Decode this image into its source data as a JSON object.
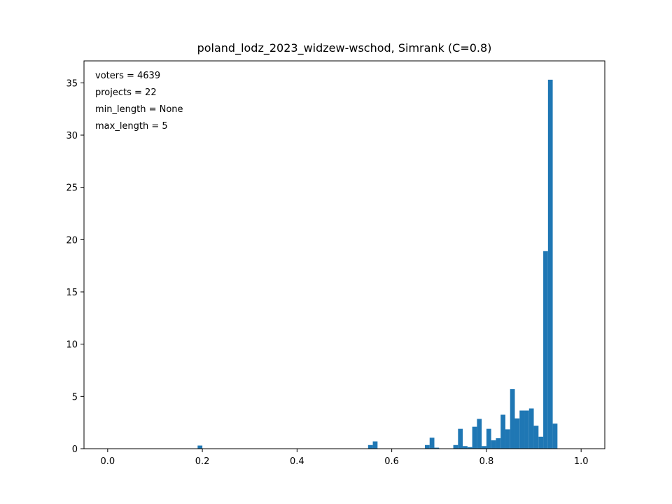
{
  "chart_data": {
    "type": "bar",
    "title": "poland_lodz_2023_widzew-wschod, Simrank (C=0.8)",
    "xlabel": "",
    "ylabel": "",
    "xlim": [
      -0.05,
      1.05
    ],
    "ylim": [
      0,
      37.1
    ],
    "x_ticks": [
      0.0,
      0.2,
      0.4,
      0.6,
      0.8,
      1.0
    ],
    "x_tick_labels": [
      "0.0",
      "0.2",
      "0.4",
      "0.6",
      "0.8",
      "1.0"
    ],
    "y_ticks": [
      0,
      5,
      10,
      15,
      20,
      25,
      30,
      35
    ],
    "y_tick_labels": [
      "0",
      "5",
      "10",
      "15",
      "20",
      "25",
      "30",
      "35"
    ],
    "bar_color": "#1f77b4",
    "bin_width": 0.01,
    "bins": [
      {
        "x": 0.19,
        "height": 0.3
      },
      {
        "x": 0.55,
        "height": 0.35
      },
      {
        "x": 0.56,
        "height": 0.7
      },
      {
        "x": 0.67,
        "height": 0.35
      },
      {
        "x": 0.68,
        "height": 1.05
      },
      {
        "x": 0.69,
        "height": 0.1
      },
      {
        "x": 0.73,
        "height": 0.35
      },
      {
        "x": 0.74,
        "height": 1.9
      },
      {
        "x": 0.75,
        "height": 0.25
      },
      {
        "x": 0.76,
        "height": 0.15
      },
      {
        "x": 0.77,
        "height": 2.1
      },
      {
        "x": 0.78,
        "height": 2.85
      },
      {
        "x": 0.79,
        "height": 0.25
      },
      {
        "x": 0.8,
        "height": 1.9
      },
      {
        "x": 0.81,
        "height": 0.8
      },
      {
        "x": 0.82,
        "height": 1.0
      },
      {
        "x": 0.83,
        "height": 3.25
      },
      {
        "x": 0.84,
        "height": 1.85
      },
      {
        "x": 0.85,
        "height": 5.7
      },
      {
        "x": 0.86,
        "height": 2.9
      },
      {
        "x": 0.87,
        "height": 3.65
      },
      {
        "x": 0.88,
        "height": 3.65
      },
      {
        "x": 0.89,
        "height": 3.85
      },
      {
        "x": 0.9,
        "height": 2.2
      },
      {
        "x": 0.91,
        "height": 1.15
      },
      {
        "x": 0.92,
        "height": 18.9
      },
      {
        "x": 0.93,
        "height": 35.3
      },
      {
        "x": 0.94,
        "height": 2.4
      }
    ],
    "annotations": [
      "voters = 4639",
      "projects = 22",
      "min_length = None",
      "max_length = 5"
    ],
    "grid": false,
    "legend": "none"
  }
}
